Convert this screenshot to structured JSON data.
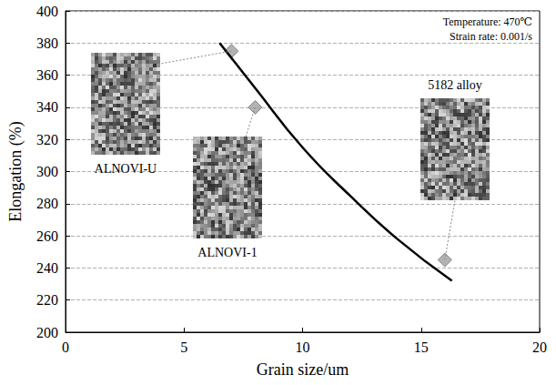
{
  "chart_data": {
    "type": "scatter",
    "xlabel": "Grain size/um",
    "ylabel": "Elongation (%)",
    "annotations": [
      "Temperature: 470℃",
      "Strain rate: 0.001/s"
    ],
    "xlim": [
      0,
      20
    ],
    "xticks": [
      0,
      5,
      10,
      15,
      20
    ],
    "ylim": [
      200,
      400
    ],
    "yticks": [
      200,
      220,
      240,
      260,
      280,
      300,
      320,
      340,
      360,
      380,
      400
    ],
    "grid": true,
    "series": [
      {
        "type": "scatter",
        "marker": "diamond",
        "color": "#a0a0a0",
        "x": [
          7,
          8,
          16
        ],
        "values": [
          375,
          340,
          245
        ],
        "point_labels": [
          "ALNOVI-U",
          "ALNOVI-1",
          "5182 alloy"
        ]
      },
      {
        "type": "line",
        "line_style": "solid",
        "color": "#000000",
        "x": [
          6.5,
          8,
          10,
          12,
          14,
          16.3
        ],
        "values": [
          380,
          352,
          315,
          285,
          258,
          232
        ]
      }
    ]
  }
}
